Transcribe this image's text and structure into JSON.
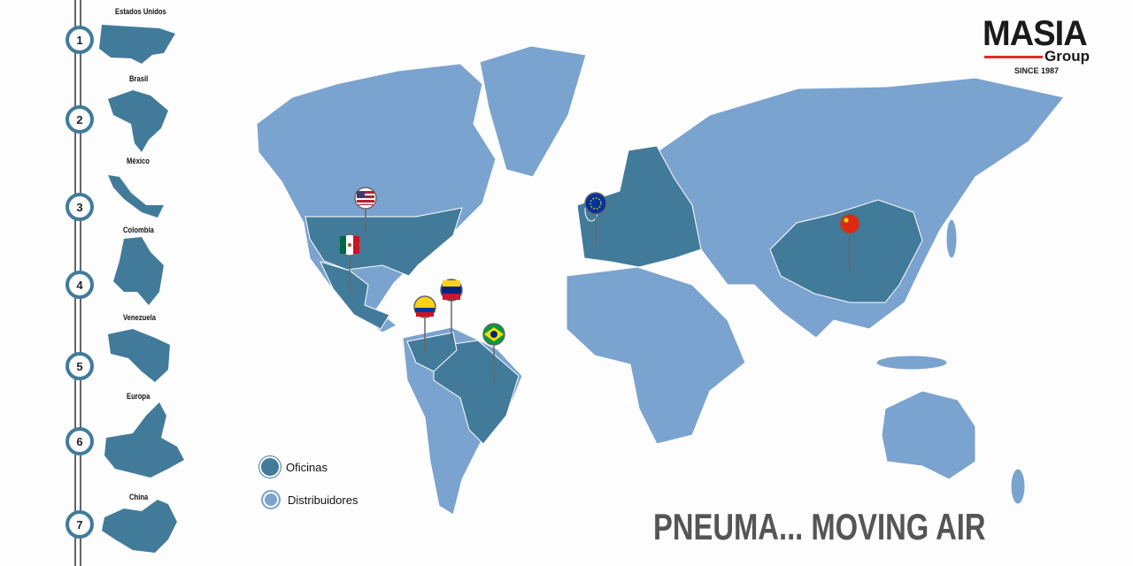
{
  "brand": {
    "name": "MASIA",
    "sub": "Group",
    "since": "SINCE 1987",
    "accent": "#d9302b"
  },
  "colors": {
    "offices": "#427b9a",
    "distributors": "#7ba3cf"
  },
  "steps": [
    {
      "number": "1",
      "label": "Estados Unidos"
    },
    {
      "number": "2",
      "label": "Brasil"
    },
    {
      "number": "3",
      "label": "México"
    },
    {
      "number": "4",
      "label": "Colombia"
    },
    {
      "number": "5",
      "label": "Venezuela"
    },
    {
      "number": "6",
      "label": "Europa"
    },
    {
      "number": "7",
      "label": "China"
    }
  ],
  "legend": {
    "offices": "Oficinas",
    "distributors": "Distribuidores"
  },
  "pins": [
    "flag-usa",
    "flag-mexico",
    "flag-colombia",
    "flag-venezuela",
    "flag-brazil",
    "flag-eu",
    "flag-china"
  ],
  "tagline": "PNEUMA... MOVING AIR"
}
